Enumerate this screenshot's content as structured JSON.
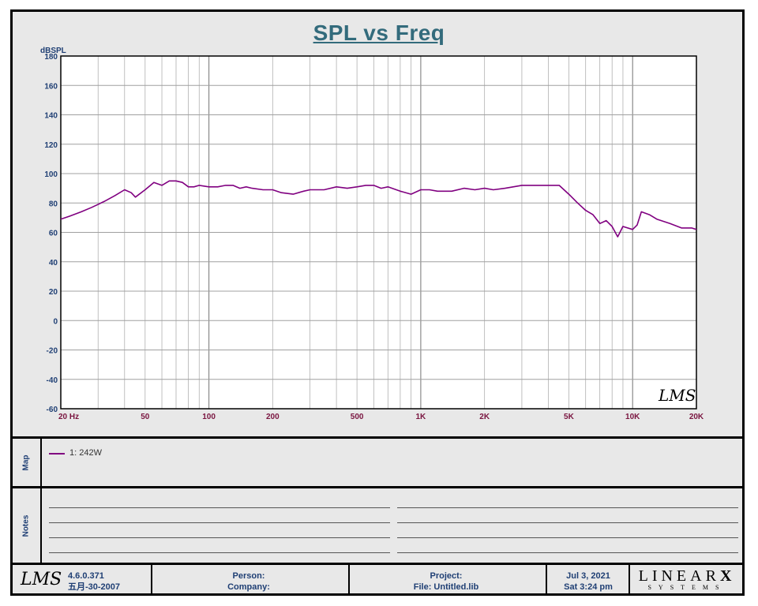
{
  "chart_data": {
    "type": "line",
    "title": "SPL vs Freq",
    "ylabel": "dBSPL",
    "xscale": "log",
    "xlim": [
      20,
      20000
    ],
    "ylim": [
      -60,
      180
    ],
    "grid": true,
    "y_ticks": [
      "180",
      "160",
      "140",
      "120",
      "100",
      "80",
      "60",
      "40",
      "20",
      "0",
      "-20",
      "-40",
      "-60"
    ],
    "x_ticks": [
      {
        "v": 20,
        "label": "20  Hz"
      },
      {
        "v": 50,
        "label": "50"
      },
      {
        "v": 100,
        "label": "100"
      },
      {
        "v": 200,
        "label": "200"
      },
      {
        "v": 500,
        "label": "500"
      },
      {
        "v": 1000,
        "label": "1K"
      },
      {
        "v": 2000,
        "label": "2K"
      },
      {
        "v": 5000,
        "label": "5K"
      },
      {
        "v": 10000,
        "label": "10K"
      },
      {
        "v": 20000,
        "label": "20K"
      }
    ],
    "series": [
      {
        "name": "1: 242W",
        "color": "#800080",
        "x": [
          20,
          22,
          25,
          28,
          32,
          36,
          40,
          43,
          45,
          50,
          55,
          60,
          65,
          70,
          75,
          80,
          85,
          90,
          100,
          110,
          120,
          130,
          140,
          150,
          160,
          180,
          200,
          220,
          250,
          280,
          300,
          350,
          400,
          450,
          500,
          550,
          600,
          650,
          700,
          800,
          900,
          1000,
          1100,
          1200,
          1400,
          1600,
          1800,
          2000,
          2200,
          2500,
          3000,
          3500,
          4000,
          4500,
          5000,
          5500,
          6000,
          6500,
          7000,
          7500,
          8000,
          8500,
          9000,
          10000,
          10500,
          11000,
          12000,
          13000,
          15000,
          17000,
          19000,
          20000
        ],
        "y": [
          69,
          71,
          74,
          77,
          81,
          85,
          89,
          87,
          84,
          89,
          94,
          92,
          95,
          95,
          94,
          91,
          91,
          92,
          91,
          91,
          92,
          92,
          90,
          91,
          90,
          89,
          89,
          87,
          86,
          88,
          89,
          89,
          91,
          90,
          91,
          92,
          92,
          90,
          91,
          88,
          86,
          89,
          89,
          88,
          88,
          90,
          89,
          90,
          89,
          90,
          92,
          92,
          92,
          92,
          86,
          80,
          75,
          72,
          66,
          68,
          64,
          57,
          64,
          62,
          65,
          74,
          72,
          69,
          66,
          63,
          63,
          62
        ]
      }
    ]
  },
  "lms_logo_text": "LMS",
  "map_label": "Map",
  "notes_label": "Notes",
  "legend_entry": "1: 242W",
  "footer": {
    "version": "4.6.0.371",
    "date_built": "五月-30-2007",
    "person_label": "Person:",
    "company_label": "Company:",
    "project_label": "Project:",
    "file_label": "File: Untitled.lib",
    "date": "Jul  3, 2021",
    "time": "Sat  3:24 pm",
    "brand": "LINEAR",
    "brand_x": "X",
    "brand_sub": "SYSTEMS"
  }
}
